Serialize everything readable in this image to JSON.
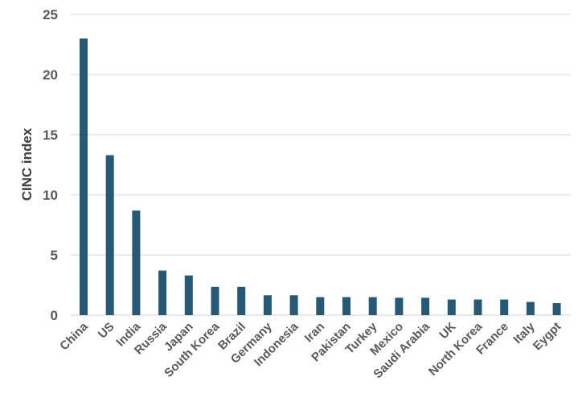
{
  "chart_data": {
    "type": "bar",
    "title": "",
    "xlabel": "",
    "ylabel": "CINC index",
    "ylim": [
      0,
      25
    ],
    "yticks": [
      "0",
      "5",
      "10",
      "15",
      "20",
      "25"
    ],
    "grid": true,
    "legend": "none",
    "bar_color": "#245a78",
    "categories": [
      "China",
      "US",
      "India",
      "Russia",
      "Japan",
      "South Korea",
      "Brazil",
      "Germany",
      "Indonesia",
      "Iran",
      "Pakistan",
      "Turkey",
      "Mexico",
      "Saudi Arabia",
      "UK",
      "North Korea",
      "France",
      "Italy",
      "Eygpt"
    ],
    "values": [
      23.0,
      13.3,
      8.7,
      3.7,
      3.3,
      2.35,
      2.35,
      1.65,
      1.65,
      1.5,
      1.5,
      1.5,
      1.45,
      1.45,
      1.3,
      1.3,
      1.3,
      1.1,
      1.0
    ]
  }
}
